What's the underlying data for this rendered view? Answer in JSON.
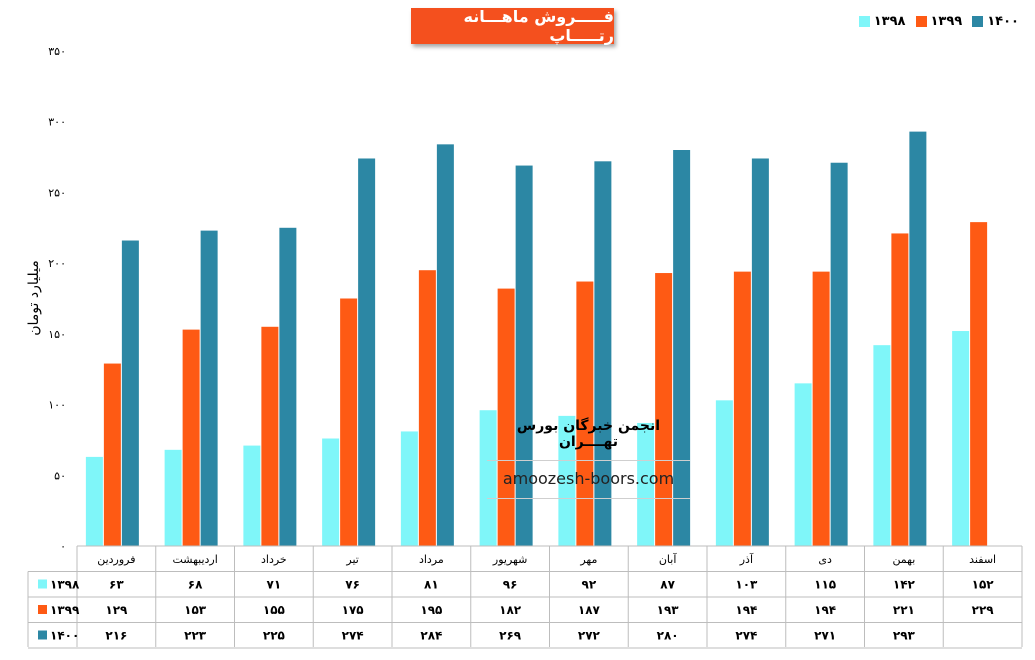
{
  "title": "فـــــروش ماهـــانه رتـــــاپ",
  "watermark": {
    "title": "انجمن خبرگان بورس تهــــران",
    "url": "amoozesh-boors.com"
  },
  "chart_data": {
    "type": "bar",
    "title": "فـــــروش ماهـــانه رتـــــاپ",
    "ylabel": "میلیارد تومان",
    "xlabel": "",
    "ylim": [
      0,
      350
    ],
    "yticks": [
      "۰",
      "۵۰",
      "۱۰۰",
      "۱۵۰",
      "۲۰۰",
      "۲۵۰",
      "۳۰۰",
      "۳۵۰"
    ],
    "ytick_values": [
      0,
      50,
      100,
      150,
      200,
      250,
      300,
      350
    ],
    "grid": false,
    "legend_position": "top-right",
    "categories": [
      "فروردین",
      "اردیبهشت",
      "خرداد",
      "تیر",
      "مرداد",
      "شهریور",
      "مهر",
      "آبان",
      "آذر",
      "دی",
      "بهمن",
      "اسفند"
    ],
    "series": [
      {
        "name": "۱۳۹۸",
        "color": "#7ff6f9",
        "values": [
          63,
          68,
          71,
          76,
          81,
          96,
          92,
          87,
          103,
          115,
          142,
          152
        ],
        "labels": [
          "۶۳",
          "۶۸",
          "۷۱",
          "۷۶",
          "۸۱",
          "۹۶",
          "۹۲",
          "۸۷",
          "۱۰۳",
          "۱۱۵",
          "۱۴۲",
          "۱۵۲"
        ]
      },
      {
        "name": "۱۳۹۹",
        "color": "#fe5a14",
        "values": [
          129,
          153,
          155,
          175,
          195,
          182,
          187,
          193,
          194,
          194,
          221,
          229
        ],
        "labels": [
          "۱۲۹",
          "۱۵۳",
          "۱۵۵",
          "۱۷۵",
          "۱۹۵",
          "۱۸۲",
          "۱۸۷",
          "۱۹۳",
          "۱۹۴",
          "۱۹۴",
          "۲۲۱",
          "۲۲۹"
        ]
      },
      {
        "name": "۱۴۰۰",
        "color": "#2c87a4",
        "values": [
          216,
          223,
          225,
          274,
          284,
          269,
          272,
          280,
          274,
          271,
          293,
          null
        ],
        "labels": [
          "۲۱۶",
          "۲۲۳",
          "۲۲۵",
          "۲۷۴",
          "۲۸۴",
          "۲۶۹",
          "۲۷۲",
          "۲۸۰",
          "۲۷۴",
          "۲۷۱",
          "۲۹۳",
          ""
        ]
      }
    ]
  }
}
